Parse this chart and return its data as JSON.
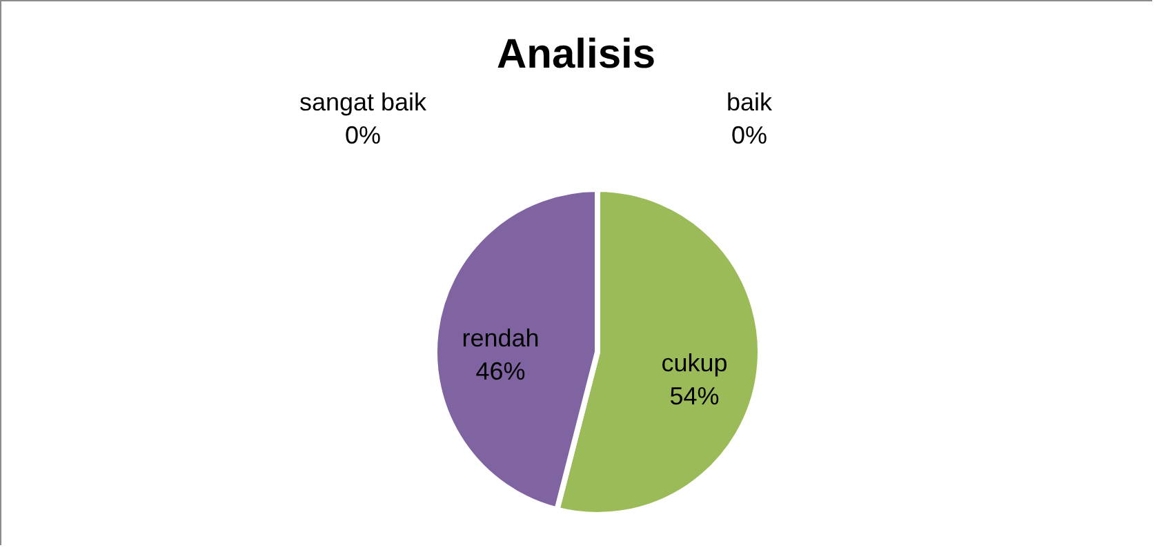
{
  "chart_data": {
    "type": "pie",
    "title": "Analisis",
    "categories": [
      "sangat baik",
      "baik",
      "cukup",
      "rendah"
    ],
    "values": [
      0,
      0,
      54,
      46
    ],
    "value_labels": [
      "0%",
      "0%",
      "54%",
      "46%"
    ],
    "colors": [
      "#4f81bd",
      "#c0504d",
      "#9bbb59",
      "#8064a2"
    ]
  }
}
